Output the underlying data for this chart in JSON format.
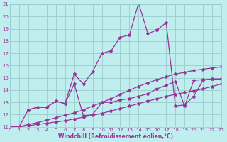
{
  "bg_color": "#c0eeee",
  "grid_color": "#99cccc",
  "line_color": "#993399",
  "xlabel": "Windchill (Refroidissement éolien,°C)",
  "xlim": [
    0,
    23
  ],
  "ylim": [
    11,
    21
  ],
  "xticks": [
    0,
    1,
    2,
    3,
    4,
    5,
    6,
    7,
    8,
    9,
    10,
    11,
    12,
    13,
    14,
    15,
    16,
    17,
    18,
    19,
    20,
    21,
    22,
    23
  ],
  "yticks": [
    11,
    12,
    13,
    14,
    15,
    16,
    17,
    18,
    19,
    20,
    21
  ],
  "curve_A_x": [
    0,
    1,
    2,
    3,
    4,
    5,
    6,
    7,
    8,
    9,
    10,
    11,
    12,
    13,
    14,
    15,
    16,
    17,
    18,
    19,
    20,
    21,
    22,
    23
  ],
  "curve_A_y": [
    11.0,
    11.0,
    11.1,
    11.2,
    11.3,
    11.4,
    11.5,
    11.65,
    11.8,
    11.95,
    12.1,
    12.3,
    12.5,
    12.7,
    12.9,
    13.1,
    13.3,
    13.5,
    13.65,
    13.8,
    13.95,
    14.1,
    14.3,
    14.5
  ],
  "curve_B_x": [
    0,
    1,
    2,
    3,
    4,
    5,
    6,
    7,
    8,
    9,
    10,
    11,
    12,
    13,
    14,
    15,
    16,
    17,
    18,
    19,
    20,
    21,
    22,
    23
  ],
  "curve_B_y": [
    11.0,
    11.0,
    11.2,
    11.35,
    11.55,
    11.75,
    11.95,
    12.15,
    12.4,
    12.7,
    13.0,
    13.3,
    13.65,
    14.0,
    14.3,
    14.6,
    14.85,
    15.1,
    15.3,
    15.45,
    15.6,
    15.7,
    15.8,
    15.9
  ],
  "curve_C_x": [
    0,
    1,
    2,
    3,
    4,
    5,
    6,
    7,
    8,
    9,
    10,
    11,
    12,
    13,
    14,
    15,
    16,
    17,
    18,
    19,
    20,
    21,
    22,
    23
  ],
  "curve_C_y": [
    11.0,
    11.0,
    12.4,
    12.6,
    12.6,
    13.1,
    12.9,
    15.3,
    14.5,
    15.5,
    17.0,
    17.2,
    18.3,
    18.5,
    21.1,
    18.6,
    18.9,
    19.5,
    12.7,
    12.8,
    13.5,
    14.8,
    14.9,
    14.9
  ],
  "curve_D_x": [
    2,
    3,
    4,
    5,
    6,
    7,
    8,
    9,
    10,
    11,
    12,
    13,
    14,
    15,
    16,
    17,
    18,
    19,
    20,
    21,
    22,
    23
  ],
  "curve_D_y": [
    12.4,
    12.6,
    12.6,
    13.1,
    12.9,
    14.5,
    11.9,
    12.0,
    13.0,
    13.0,
    13.2,
    13.3,
    13.5,
    13.7,
    14.1,
    14.4,
    14.7,
    12.7,
    14.8,
    14.85,
    14.9,
    14.9
  ]
}
